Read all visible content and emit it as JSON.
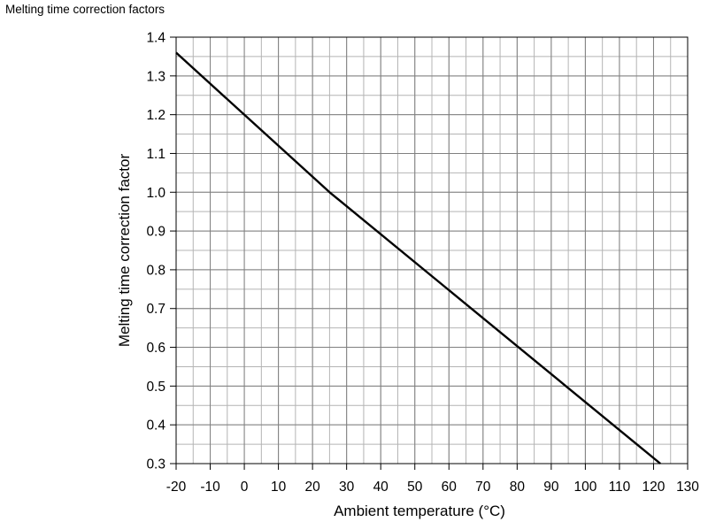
{
  "figure_title": "Melting time correction factors",
  "chart_data": {
    "type": "line",
    "title": "Melting time correction factors",
    "xlabel": "Ambient temperature (°C)",
    "ylabel": "Melting time correction factor",
    "xlim": [
      -20,
      130
    ],
    "ylim": [
      0.3,
      1.4
    ],
    "x_ticks": [
      -20,
      -10,
      0,
      10,
      20,
      30,
      40,
      50,
      60,
      70,
      80,
      90,
      100,
      110,
      120,
      130
    ],
    "x_tick_labels": [
      "-20",
      "-10",
      "0",
      "10",
      "20",
      "30",
      "40",
      "50",
      "60",
      "70",
      "80",
      "90",
      "100",
      "110",
      "120",
      "130"
    ],
    "y_ticks": [
      0.3,
      0.4,
      0.5,
      0.6,
      0.7,
      0.8,
      0.9,
      1.0,
      1.1,
      1.2,
      1.3,
      1.4
    ],
    "y_tick_labels": [
      "0.3",
      "0.4",
      "0.5",
      "0.6",
      "0.7",
      "0.8",
      "0.9",
      "1.0",
      "1.1",
      "1.2",
      "1.3",
      "1.4"
    ],
    "minor_grid_step_x": 5,
    "minor_grid_step_y": 0.05,
    "grid": true,
    "legend": "none",
    "series": [
      {
        "color": "#000000",
        "x": [
          -20,
          0,
          25,
          122
        ],
        "y": [
          1.36,
          1.2,
          1.0,
          0.3
        ]
      }
    ]
  }
}
